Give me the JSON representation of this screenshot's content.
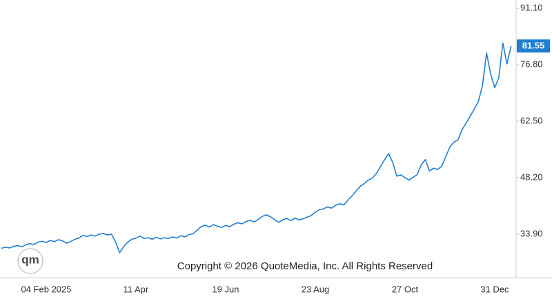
{
  "chart_data": {
    "type": "line",
    "color": "#1f7fd1",
    "categories": [
      null,
      null,
      null,
      null,
      null,
      null,
      null,
      null,
      null,
      null,
      null,
      "04 Feb 2025",
      null,
      null,
      null,
      null,
      null,
      null,
      null,
      null,
      null,
      null,
      null,
      null,
      null,
      null,
      null,
      null,
      null,
      null,
      null,
      null,
      null,
      "11 Apr",
      null,
      null,
      null,
      null,
      null,
      null,
      null,
      null,
      null,
      null,
      null,
      null,
      null,
      null,
      null,
      null,
      null,
      null,
      null,
      null,
      null,
      "19 Jun",
      null,
      null,
      null,
      null,
      null,
      null,
      null,
      null,
      null,
      null,
      null,
      null,
      null,
      null,
      null,
      null,
      null,
      null,
      null,
      null,
      null,
      "23 Aug",
      null,
      null,
      null,
      null,
      null,
      null,
      null,
      null,
      null,
      null,
      null,
      null,
      null,
      null,
      null,
      null,
      null,
      null,
      null,
      null,
      null,
      "27 Oct",
      null,
      null,
      null,
      null,
      null,
      null,
      null,
      null,
      null,
      null,
      null,
      null,
      null,
      null,
      null,
      null,
      null,
      null,
      null,
      null,
      null,
      "31 Dec",
      null,
      null,
      null,
      null
    ],
    "values": [
      30.3,
      30.6,
      30.4,
      30.8,
      31.0,
      30.7,
      31.2,
      31.5,
      31.3,
      31.9,
      32.1,
      31.8,
      32.3,
      32.0,
      32.5,
      32.2,
      31.6,
      32.0,
      32.6,
      32.9,
      33.6,
      33.3,
      33.7,
      33.4,
      33.9,
      34.1,
      33.7,
      33.9,
      32.0,
      29.2,
      30.8,
      31.9,
      32.6,
      32.9,
      33.4,
      32.8,
      33.0,
      32.6,
      33.1,
      32.7,
      33.0,
      32.8,
      33.2,
      32.9,
      33.5,
      33.2,
      33.8,
      34.0,
      34.9,
      35.8,
      36.2,
      35.7,
      36.3,
      35.9,
      35.6,
      36.1,
      35.8,
      36.4,
      36.8,
      36.5,
      37.1,
      37.4,
      37.0,
      37.6,
      38.4,
      38.8,
      38.3,
      37.6,
      36.9,
      37.5,
      37.9,
      37.3,
      38.0,
      37.5,
      37.8,
      38.2,
      38.6,
      39.5,
      40.1,
      40.3,
      40.8,
      40.5,
      41.2,
      41.6,
      41.3,
      42.5,
      43.6,
      44.8,
      46.0,
      46.7,
      47.6,
      48.1,
      49.3,
      51.0,
      52.8,
      54.3,
      52.0,
      48.6,
      48.9,
      48.2,
      47.6,
      48.3,
      49.0,
      51.5,
      52.8,
      49.9,
      50.6,
      50.3,
      51.1,
      53.5,
      56.0,
      57.2,
      57.8,
      60.4,
      62.0,
      63.8,
      65.6,
      67.5,
      71.5,
      79.8,
      74.5,
      71.0,
      73.5,
      82.3,
      77.0,
      81.55
    ],
    "ylim": [
      22.9,
      93.2
    ],
    "yticks": [
      {
        "value": 33.9,
        "label": "33.90"
      },
      {
        "value": 48.2,
        "label": "48.20"
      },
      {
        "value": 62.5,
        "label": "62.50"
      },
      {
        "value": 76.8,
        "label": "76.80"
      },
      {
        "value": 91.1,
        "label": "91.10"
      }
    ],
    "grid": false,
    "logo": "qm",
    "copyright": "Copyright © 2026 QuoteMedia, Inc. All Rights Reserved"
  }
}
